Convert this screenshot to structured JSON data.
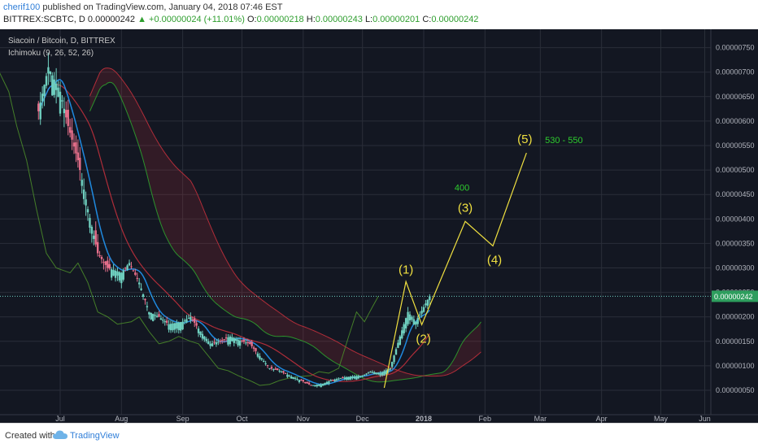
{
  "header": {
    "author": "cherif100",
    "published_text": "published on TradingView.com, January 04, 2018 07:46 EST",
    "symbol": "BITTREX:SCBTC, D",
    "last_price": "0.00000242",
    "change": "▲ +0.00000024 (+11.01%)",
    "open_label": "O:",
    "open_value": "0.00000218",
    "high_label": "H:",
    "high_value": "0.00000243",
    "low_label": "L:",
    "low_value": "0.00000201",
    "close_label": "C:",
    "close_value": "0.00000242"
  },
  "legend": {
    "title": "Siacoin / Bitcoin, D, BITTREX",
    "indicator": "Ichimoku (9, 26, 52, 26)"
  },
  "footer": {
    "created_with": "Created with",
    "brand": "TradingView"
  },
  "colors": {
    "background": "#131722",
    "up_candle": "#6fd0c0",
    "down_candle": "#e8708c",
    "tenkan": "#2196f3",
    "kijun": "#c0303c",
    "chikou": "#4a8a2a",
    "span_a": "#2e9e2e",
    "span_b": "#c0303c",
    "wave": "#f0e040",
    "target_label": "#2ecc2e",
    "last_price_tag": "#2e9e5e"
  },
  "chart_data": {
    "type": "candlestick",
    "title": "Siacoin / Bitcoin, D, BITTREX",
    "indicator": "Ichimoku (9, 26, 52, 26)",
    "y_unit": "BTC",
    "ylim": [
      3e-07,
      8e-07
    ],
    "y_ticks": [
      "0.00000050",
      "0.00000100",
      "0.00000150",
      "0.00000200",
      "0.00000250",
      "0.00000300",
      "0.00000350",
      "0.00000400",
      "0.00000450",
      "0.00000500",
      "0.00000550",
      "0.00000600",
      "0.00000650",
      "0.00000700",
      "0.00000750"
    ],
    "x_ticks": [
      "Jul",
      "Aug",
      "Sep",
      "Oct",
      "Nov",
      "Dec",
      "2018",
      "Feb",
      "Mar",
      "Apr",
      "May",
      "Jun"
    ],
    "grid": true,
    "last_price_label": "0.00000242",
    "close_path": [
      [
        "Jun 20",
        6.2e-06
      ],
      [
        "Jun 25",
        7.1e-06
      ],
      [
        "Jul 01",
        6.6e-06
      ],
      [
        "Jul 05",
        5.9e-06
      ],
      [
        "Jul 10",
        5.2e-06
      ],
      [
        "Jul 15",
        4.2e-06
      ],
      [
        "Jul 20",
        3.3e-06
      ],
      [
        "Jul 25",
        3e-06
      ],
      [
        "Aug 01",
        2.9e-06
      ],
      [
        "Aug 05",
        3.1e-06
      ],
      [
        "Aug 10",
        2.7e-06
      ],
      [
        "Aug 15",
        2.1e-06
      ],
      [
        "Aug 20",
        2e-06
      ],
      [
        "Aug 25",
        1.85e-06
      ],
      [
        "Sep 01",
        1.9e-06
      ],
      [
        "Sep 05",
        2e-06
      ],
      [
        "Sep 10",
        1.7e-06
      ],
      [
        "Sep 15",
        1.45e-06
      ],
      [
        "Sep 20",
        1.5e-06
      ],
      [
        "Sep 25",
        1.6e-06
      ],
      [
        "Oct 01",
        1.5e-06
      ],
      [
        "Oct 05",
        1.45e-06
      ],
      [
        "Oct 10",
        1.2e-06
      ],
      [
        "Oct 15",
        9.5e-07
      ],
      [
        "Oct 20",
        9e-07
      ],
      [
        "Oct 25",
        8e-07
      ],
      [
        "Nov 01",
        6.8e-07
      ],
      [
        "Nov 05",
        6e-07
      ],
      [
        "Nov 10",
        6.2e-07
      ],
      [
        "Nov 15",
        7e-07
      ],
      [
        "Nov 20",
        7.5e-07
      ],
      [
        "Nov 25",
        7.8e-07
      ],
      [
        "Dec 01",
        8e-07
      ],
      [
        "Dec 05",
        8.8e-07
      ],
      [
        "Dec 10",
        8.5e-07
      ],
      [
        "Dec 15",
        9.5e-07
      ],
      [
        "Dec 20",
        1.6e-06
      ],
      [
        "Dec 24",
        2.1e-06
      ],
      [
        "Dec 28",
        1.9e-06
      ],
      [
        "Jan 01",
        2.2e-06
      ],
      [
        "Jan 04",
        2.42e-06
      ]
    ],
    "elliott_waves": {
      "points": [
        {
          "label": "",
          "x": "Dec 12",
          "y": 5.5e-07
        },
        {
          "label": "(1)",
          "x": "Dec 23",
          "y": 2.72e-06
        },
        {
          "label": "(2)",
          "x": "Dec 31",
          "y": 1.84e-06
        },
        {
          "label": "(3)",
          "x": "Jan 22",
          "y": 3.95e-06
        },
        {
          "label": "(4)",
          "x": "Feb 05",
          "y": 3.45e-06
        },
        {
          "label": "(5)",
          "x": "Feb 22",
          "y": 5.35e-06
        }
      ],
      "targets": [
        {
          "label": "400",
          "near": "(3)"
        },
        {
          "label": "530 - 550",
          "near": "(5)"
        }
      ]
    }
  }
}
